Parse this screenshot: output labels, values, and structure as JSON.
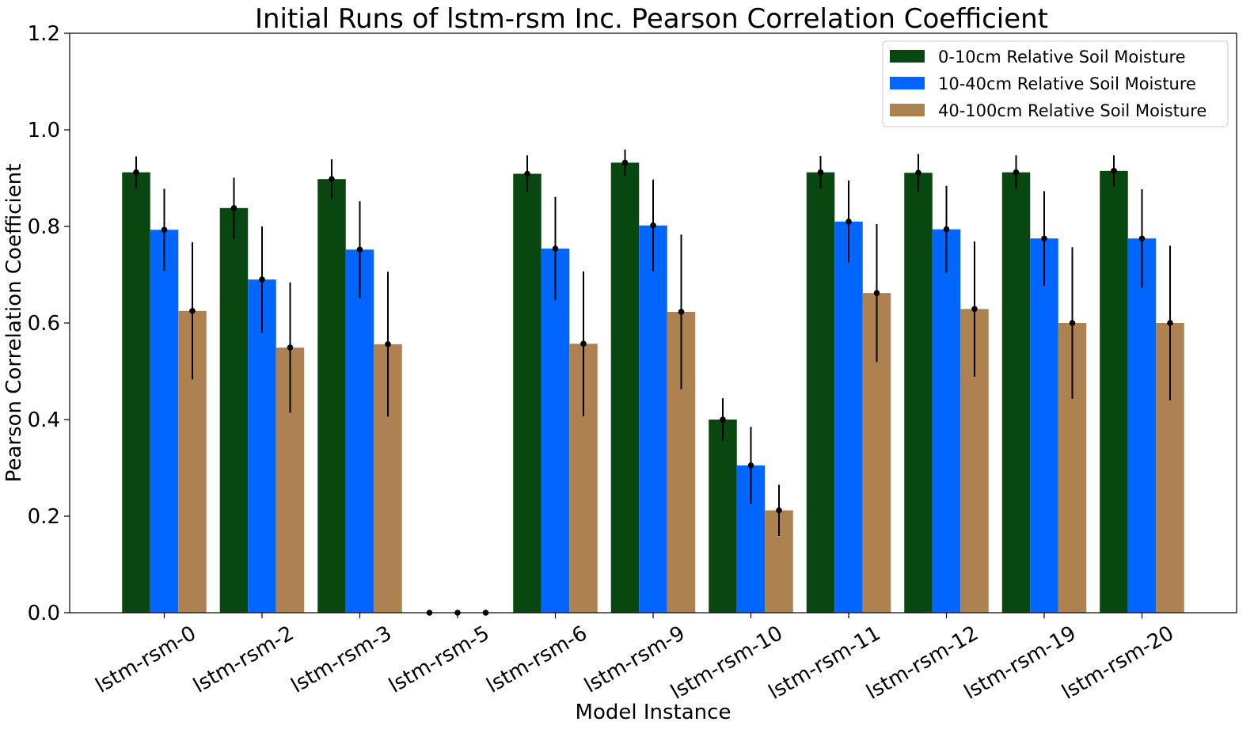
{
  "chart_data": {
    "type": "bar",
    "title": "Initial Runs of lstm-rsm Inc. Pearson Correlation Coefficient",
    "xlabel": "Model Instance",
    "ylabel": "Pearson Correlation Coefficient",
    "ylim": [
      0,
      1.2
    ],
    "yticks": [
      "0.0",
      "0.2",
      "0.4",
      "0.6",
      "0.8",
      "1.0",
      "1.2"
    ],
    "grid": false,
    "legend_position": "top-right",
    "categories": [
      "lstm-rsm-0",
      "lstm-rsm-2",
      "lstm-rsm-3",
      "lstm-rsm-5",
      "lstm-rsm-6",
      "lstm-rsm-9",
      "lstm-rsm-10",
      "lstm-rsm-11",
      "lstm-rsm-12",
      "lstm-rsm-19",
      "lstm-rsm-20"
    ],
    "series": [
      {
        "name": "0-10cm Relative Soil Moisture",
        "color": "#08470f",
        "values": [
          0.912,
          0.838,
          0.898,
          0.0,
          0.909,
          0.932,
          0.4,
          0.912,
          0.911,
          0.912,
          0.915
        ],
        "errors": [
          0.033,
          0.063,
          0.041,
          0.0,
          0.038,
          0.027,
          0.044,
          0.034,
          0.039,
          0.035,
          0.032
        ]
      },
      {
        "name": "10-40cm Relative Soil Moisture",
        "color": "#0066ff",
        "values": [
          0.793,
          0.69,
          0.752,
          0.0,
          0.754,
          0.802,
          0.305,
          0.81,
          0.794,
          0.775,
          0.775
        ],
        "errors": [
          0.085,
          0.11,
          0.1,
          0.0,
          0.107,
          0.095,
          0.08,
          0.085,
          0.09,
          0.098,
          0.102
        ]
      },
      {
        "name": "40-100cm Relative Soil Moisture",
        "color": "#ad8150",
        "values": [
          0.625,
          0.549,
          0.556,
          0.0,
          0.557,
          0.623,
          0.212,
          0.662,
          0.629,
          0.6,
          0.6
        ],
        "errors": [
          0.142,
          0.135,
          0.15,
          0.0,
          0.15,
          0.16,
          0.053,
          0.143,
          0.14,
          0.157,
          0.16
        ]
      }
    ]
  }
}
